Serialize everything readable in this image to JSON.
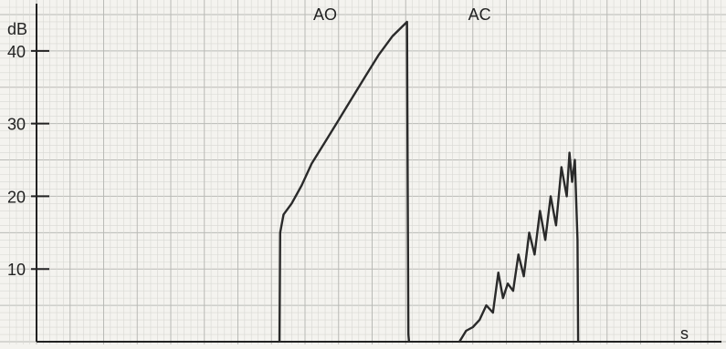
{
  "chart_data": {
    "type": "line",
    "xlabel": "s",
    "ylabel": "dB",
    "yticks": [
      10,
      20,
      30,
      40
    ],
    "ylim": [
      0,
      46
    ],
    "xlim": [
      0,
      100
    ],
    "grid": true,
    "annotations": [
      {
        "text": "AO",
        "x": 43,
        "y": 45
      },
      {
        "text": "AC",
        "x": 66,
        "y": 45
      }
    ],
    "series": [
      {
        "values_note": "AO",
        "x": [
          36.2,
          36.3,
          36.8,
          38,
          39.5,
          41,
          43,
          45,
          47,
          49,
          51,
          53,
          55.2,
          55.3,
          55.4,
          55.5
        ],
        "y": [
          0,
          15,
          17.5,
          19,
          21.5,
          24.5,
          27.5,
          30.5,
          33.5,
          36.5,
          39.5,
          42,
          44,
          20,
          1,
          0
        ]
      },
      {
        "values_note": "AC",
        "x": [
          63,
          64,
          65,
          66,
          67,
          68,
          68.8,
          69.5,
          70.2,
          71,
          71.8,
          72.6,
          73.4,
          74.2,
          75,
          75.8,
          76.6,
          77.4,
          78.2,
          79,
          79.4,
          79.8,
          80.2,
          80.6,
          80.7
        ],
        "y": [
          0,
          1.5,
          2,
          3,
          5,
          4,
          9.5,
          6,
          8,
          7,
          12,
          9,
          15,
          12,
          18,
          14,
          20,
          16,
          24,
          20,
          26,
          22,
          25,
          14,
          0
        ]
      }
    ]
  }
}
